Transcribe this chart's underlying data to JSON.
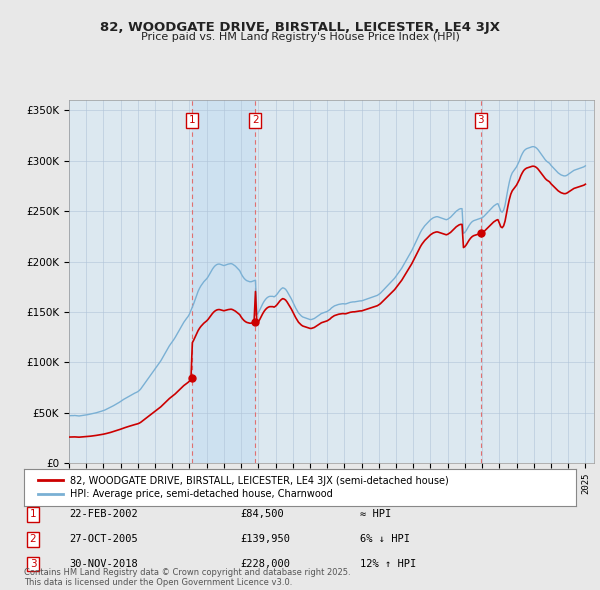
{
  "title": "82, WOODGATE DRIVE, BIRSTALL, LEICESTER, LE4 3JX",
  "subtitle": "Price paid vs. HM Land Registry's House Price Index (HPI)",
  "ylim": [
    0,
    360000
  ],
  "yticks": [
    0,
    50000,
    100000,
    150000,
    200000,
    250000,
    300000,
    350000
  ],
  "ytick_labels": [
    "£0",
    "£50K",
    "£100K",
    "£150K",
    "£200K",
    "£250K",
    "£300K",
    "£350K"
  ],
  "bg_color": "#e8e8e8",
  "plot_bg_color": "#dce8f0",
  "grid_color": "#b0c4d8",
  "hpi_color": "#7ab0d4",
  "price_color": "#cc0000",
  "vline_color": "#e07070",
  "shade_color": "#c8dff0",
  "transactions": [
    {
      "num": 1,
      "date": "22-FEB-2002",
      "price": 84500,
      "year": 2002.13,
      "note": "≈ HPI"
    },
    {
      "num": 2,
      "date": "27-OCT-2005",
      "price": 139950,
      "year": 2005.82,
      "note": "6% ↓ HPI"
    },
    {
      "num": 3,
      "date": "30-NOV-2018",
      "price": 228000,
      "year": 2018.92,
      "note": "12% ↑ HPI"
    }
  ],
  "legend_label_price": "82, WOODGATE DRIVE, BIRSTALL, LEICESTER, LE4 3JX (semi-detached house)",
  "legend_label_hpi": "HPI: Average price, semi-detached house, Charnwood",
  "footer": "Contains HM Land Registry data © Crown copyright and database right 2025.\nThis data is licensed under the Open Government Licence v3.0.",
  "hpi_monthly": [
    47000,
    47100,
    47200,
    47150,
    47300,
    47100,
    46900,
    46800,
    47000,
    47200,
    47400,
    47600,
    47800,
    48100,
    48400,
    48600,
    48900,
    49200,
    49600,
    50000,
    50400,
    50800,
    51200,
    51700,
    52200,
    52700,
    53400,
    54000,
    54700,
    55400,
    56200,
    57000,
    57800,
    58700,
    59500,
    60300,
    61200,
    62200,
    63200,
    64000,
    64900,
    65700,
    66500,
    67300,
    68100,
    68900,
    69600,
    70200,
    71000,
    72100,
    73600,
    75600,
    77600,
    79600,
    81600,
    83600,
    85600,
    87600,
    89600,
    91600,
    93500,
    95500,
    97500,
    99500,
    101500,
    104000,
    106500,
    109000,
    111500,
    114000,
    116500,
    118500,
    120500,
    122500,
    124700,
    127200,
    129700,
    132200,
    134700,
    137200,
    139700,
    141700,
    143700,
    145500,
    148000,
    151500,
    155000,
    158500,
    162500,
    166500,
    170500,
    173500,
    176000,
    178000,
    180000,
    181500,
    183000,
    185000,
    187500,
    190000,
    192500,
    194500,
    196000,
    197000,
    197500,
    197500,
    197000,
    196500,
    196000,
    196500,
    197000,
    197500,
    197800,
    198000,
    197500,
    196500,
    195500,
    194000,
    192500,
    191000,
    188000,
    185500,
    183500,
    182000,
    181000,
    180500,
    180000,
    180000,
    180500,
    181000,
    181500,
    147500,
    149500,
    152000,
    155000,
    158000,
    160500,
    162500,
    164000,
    165000,
    165500,
    165500,
    165500,
    165000,
    166000,
    167500,
    169500,
    171500,
    173000,
    174000,
    173500,
    172500,
    170500,
    168000,
    165500,
    163000,
    160000,
    157000,
    154000,
    151500,
    149000,
    147500,
    146000,
    145000,
    144500,
    144000,
    143500,
    143000,
    142500,
    142500,
    143000,
    143500,
    144500,
    145500,
    146500,
    147500,
    148500,
    149000,
    149500,
    150000,
    150500,
    151500,
    152500,
    154000,
    155000,
    156000,
    156500,
    157000,
    157500,
    157800,
    158000,
    158200,
    158000,
    158000,
    158500,
    159000,
    159500,
    159800,
    160000,
    160000,
    160200,
    160500,
    160800,
    161000,
    161000,
    161500,
    162000,
    162500,
    163000,
    163500,
    164000,
    164500,
    165000,
    165500,
    166000,
    166500,
    167500,
    168500,
    170000,
    171500,
    173000,
    174500,
    176000,
    177500,
    179000,
    180500,
    182000,
    183500,
    185500,
    187500,
    189500,
    191500,
    193500,
    196000,
    198500,
    201000,
    203500,
    206000,
    208500,
    211000,
    214000,
    217000,
    220000,
    223000,
    226000,
    229000,
    231500,
    233500,
    235500,
    237000,
    238500,
    240000,
    241500,
    242500,
    243500,
    244000,
    244500,
    244500,
    244000,
    243500,
    243000,
    242500,
    242000,
    241500,
    242000,
    243000,
    244000,
    245500,
    247000,
    248500,
    250000,
    251000,
    252000,
    252500,
    252500,
    228000,
    229000,
    231000,
    233500,
    236000,
    238000,
    239500,
    240500,
    241000,
    241500,
    242000,
    242500,
    243000,
    243500,
    244500,
    246000,
    247500,
    249000,
    250500,
    252000,
    253500,
    255000,
    256000,
    257000,
    257500,
    254000,
    250000,
    249000,
    251000,
    256000,
    264000,
    272000,
    279000,
    284500,
    288000,
    290000,
    292000,
    294000,
    297000,
    300000,
    304000,
    307000,
    309500,
    311000,
    312000,
    312500,
    313000,
    313500,
    314000,
    314000,
    313500,
    312500,
    311000,
    309000,
    307000,
    305000,
    303000,
    301000,
    299500,
    298500,
    297500,
    295500,
    294000,
    292500,
    291000,
    289500,
    288000,
    287000,
    286000,
    285500,
    285000,
    285000,
    285500,
    286500,
    287500,
    288500,
    289500,
    290500,
    291000,
    291500,
    292000,
    292500,
    293000,
    293500,
    294000,
    295000
  ]
}
